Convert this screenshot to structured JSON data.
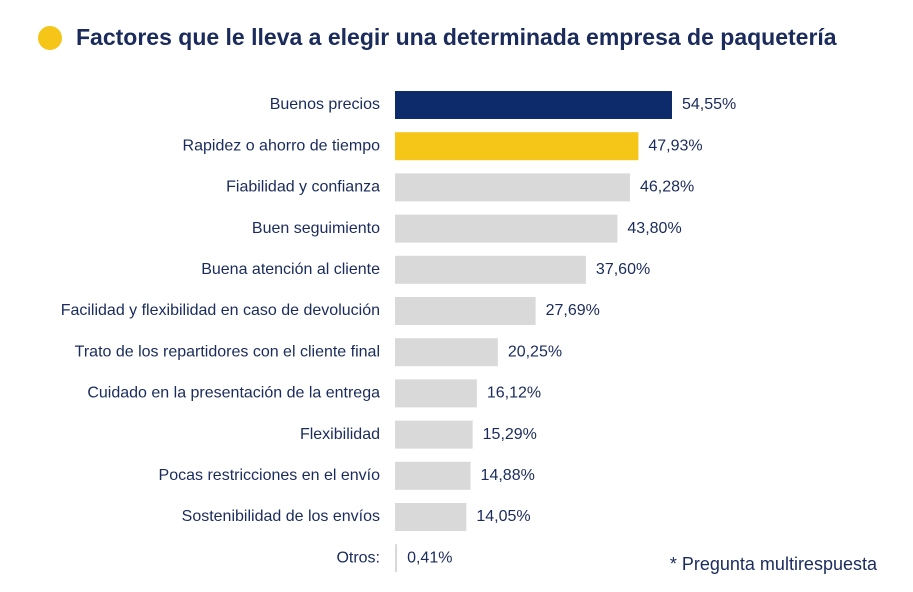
{
  "title": "Factores que le lleva a elegir una determinada empresa de paquetería",
  "footnote": "* Pregunta multirespuesta",
  "colors": {
    "accent_yellow": "#f5c518",
    "navy": "#0d2a6b",
    "gray_bar": "#d9d9d9",
    "text": "#1a2b5c"
  },
  "chart_data": {
    "type": "bar",
    "orientation": "horizontal",
    "categories": [
      "Buenos precios",
      "Rapidez o ahorro de tiempo",
      "Fiabilidad y confianza",
      "Buen seguimiento",
      "Buena atención al cliente",
      "Facilidad y flexibilidad en caso de devolución",
      "Trato de los repartidores con el cliente final",
      "Cuidado en la presentación de la entrega",
      "Flexibilidad",
      "Pocas restricciones en el envío",
      "Sostenibilidad de los envíos",
      "Otros:"
    ],
    "values": [
      54.55,
      47.93,
      46.28,
      43.8,
      37.6,
      27.69,
      20.25,
      16.12,
      15.29,
      14.88,
      14.05,
      0.41
    ],
    "value_labels": [
      "54,55%",
      "47,93%",
      "46,28%",
      "43,80%",
      "37,60%",
      "27,69%",
      "20,25%",
      "16,12%",
      "15,29%",
      "14,88%",
      "14,05%",
      "0,41%"
    ],
    "bar_colors": [
      "#0d2a6b",
      "#f5c518",
      "#d9d9d9",
      "#d9d9d9",
      "#d9d9d9",
      "#d9d9d9",
      "#d9d9d9",
      "#d9d9d9",
      "#d9d9d9",
      "#d9d9d9",
      "#d9d9d9",
      "#d9d9d9"
    ],
    "xlim": [
      0,
      100
    ],
    "grid": false,
    "legend": "none"
  }
}
